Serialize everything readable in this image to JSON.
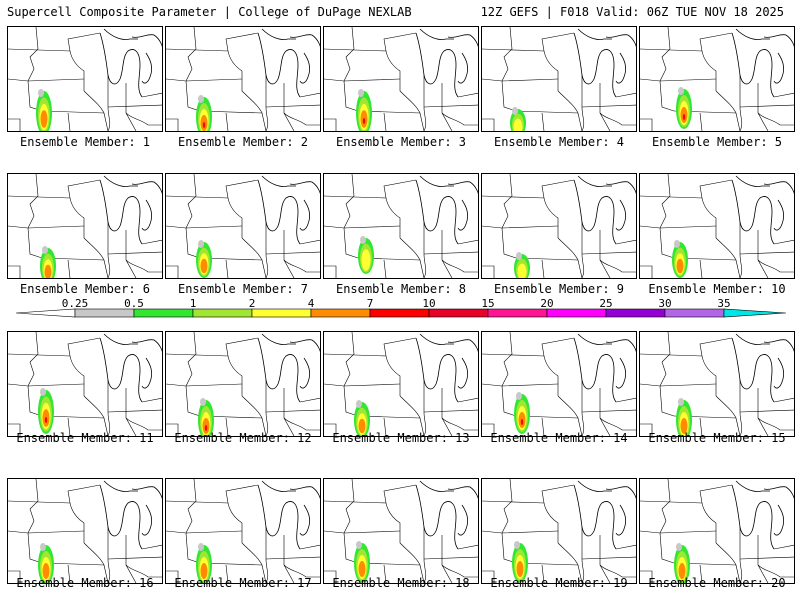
{
  "header": {
    "left": "Supercell Composite Parameter | College of DuPage NEXLAB",
    "right": "12Z GEFS | F018 Valid: 06Z TUE NOV 18 2025"
  },
  "members": [
    {
      "label": "Ensemble Member: 1"
    },
    {
      "label": "Ensemble Member: 2"
    },
    {
      "label": "Ensemble Member: 3"
    },
    {
      "label": "Ensemble Member: 4"
    },
    {
      "label": "Ensemble Member: 5"
    },
    {
      "label": "Ensemble Member: 6"
    },
    {
      "label": "Ensemble Member: 7"
    },
    {
      "label": "Ensemble Member: 8"
    },
    {
      "label": "Ensemble Member: 9"
    },
    {
      "label": "Ensemble Member: 10"
    },
    {
      "label": "Ensemble Member: 11"
    },
    {
      "label": "Ensemble Member: 12"
    },
    {
      "label": "Ensemble Member: 13"
    },
    {
      "label": "Ensemble Member: 14"
    },
    {
      "label": "Ensemble Member: 15"
    },
    {
      "label": "Ensemble Member: 16"
    },
    {
      "label": "Ensemble Member: 17"
    },
    {
      "label": "Ensemble Member: 18"
    },
    {
      "label": "Ensemble Member: 19"
    },
    {
      "label": "Ensemble Member: 20"
    }
  ],
  "colorbar": {
    "ticks": [
      "0.25",
      "0.5",
      "1",
      "2",
      "4",
      "7",
      "10",
      "15",
      "20",
      "25",
      "30",
      "35"
    ],
    "colors": [
      "#c8c8c8",
      "#32e632",
      "#a0e632",
      "#ffff32",
      "#ff8c00",
      "#ff0000",
      "#e6002a",
      "#ff1493",
      "#ff00ff",
      "#9400d3",
      "#b266e6",
      "#00e6e6"
    ]
  }
}
